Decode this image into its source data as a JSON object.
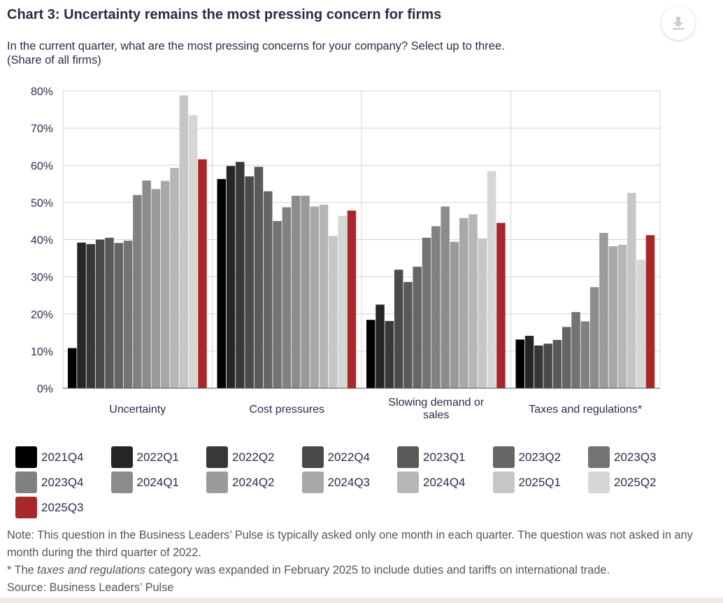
{
  "header": {
    "title": "Chart 3: Uncertainty remains the most pressing concern for firms",
    "subtitle_line1": "In the current quarter, what are the most pressing concerns for your company? Select up to three.",
    "subtitle_line2": "(Share of all firms)",
    "download_icon": "download-icon"
  },
  "chart_data": {
    "type": "bar",
    "title": "Chart 3: Uncertainty remains the most pressing concern for firms",
    "ylabel": "Share of all firms",
    "xlabel": "",
    "ylim": [
      0,
      80
    ],
    "yticks": [
      0,
      10,
      20,
      30,
      40,
      50,
      60,
      70,
      80
    ],
    "ytick_labels": [
      "0%",
      "10%",
      "20%",
      "30%",
      "40%",
      "50%",
      "60%",
      "70%",
      "80%"
    ],
    "grid": true,
    "categories": [
      [
        "Uncertainty"
      ],
      [
        "Cost pressures"
      ],
      [
        "Slowing demand or",
        "sales"
      ],
      [
        "Taxes and regulations*"
      ]
    ],
    "series": [
      {
        "name": "2021Q4",
        "color": "#000000",
        "values": [
          10.8,
          56.3,
          18.4,
          13.1
        ]
      },
      {
        "name": "2022Q1",
        "color": "#262626",
        "values": [
          39.2,
          59.8,
          22.5,
          14.1
        ]
      },
      {
        "name": "2022Q2",
        "color": "#383838",
        "values": [
          38.8,
          60.9,
          18.1,
          11.5
        ]
      },
      {
        "name": "2022Q4",
        "color": "#4a4a4a",
        "values": [
          40.0,
          57.0,
          31.9,
          12.0
        ]
      },
      {
        "name": "2023Q1",
        "color": "#595959",
        "values": [
          40.5,
          59.6,
          28.6,
          13.0
        ]
      },
      {
        "name": "2023Q2",
        "color": "#656565",
        "values": [
          39.1,
          53.0,
          32.7,
          16.5
        ]
      },
      {
        "name": "2023Q3",
        "color": "#737373",
        "values": [
          39.7,
          45.0,
          40.5,
          20.5
        ]
      },
      {
        "name": "2023Q4",
        "color": "#818181",
        "values": [
          52.0,
          48.7,
          43.6,
          18.0
        ]
      },
      {
        "name": "2024Q1",
        "color": "#8c8c8c",
        "values": [
          55.9,
          51.8,
          48.9,
          27.2
        ]
      },
      {
        "name": "2024Q2",
        "color": "#9a9a9a",
        "values": [
          53.6,
          51.8,
          39.4,
          41.8
        ]
      },
      {
        "name": "2024Q3",
        "color": "#a8a8a8",
        "values": [
          55.8,
          48.9,
          45.8,
          38.2
        ]
      },
      {
        "name": "2024Q4",
        "color": "#b6b6b6",
        "values": [
          59.3,
          49.4,
          46.8,
          38.6
        ]
      },
      {
        "name": "2025Q1",
        "color": "#c6c6c6",
        "values": [
          78.8,
          41.0,
          40.3,
          52.6
        ]
      },
      {
        "name": "2025Q2",
        "color": "#d6d6d6",
        "values": [
          73.5,
          46.4,
          58.4,
          34.6
        ]
      },
      {
        "name": "2025Q3",
        "color": "#a8282a",
        "values": [
          61.6,
          47.8,
          44.5,
          41.2
        ]
      }
    ]
  },
  "notes": {
    "note": "Note: This question in the Business Leaders’ Pulse is typically asked only one month in each quarter. The question was not asked in any month during the third quarter of 2022.",
    "star_prefix": "* The ",
    "star_italic": "taxes and regulations",
    "star_suffix": " category was expanded in February 2025 to include duties and tariffs on international trade.",
    "source": "Source: Business Leaders’ Pulse"
  }
}
